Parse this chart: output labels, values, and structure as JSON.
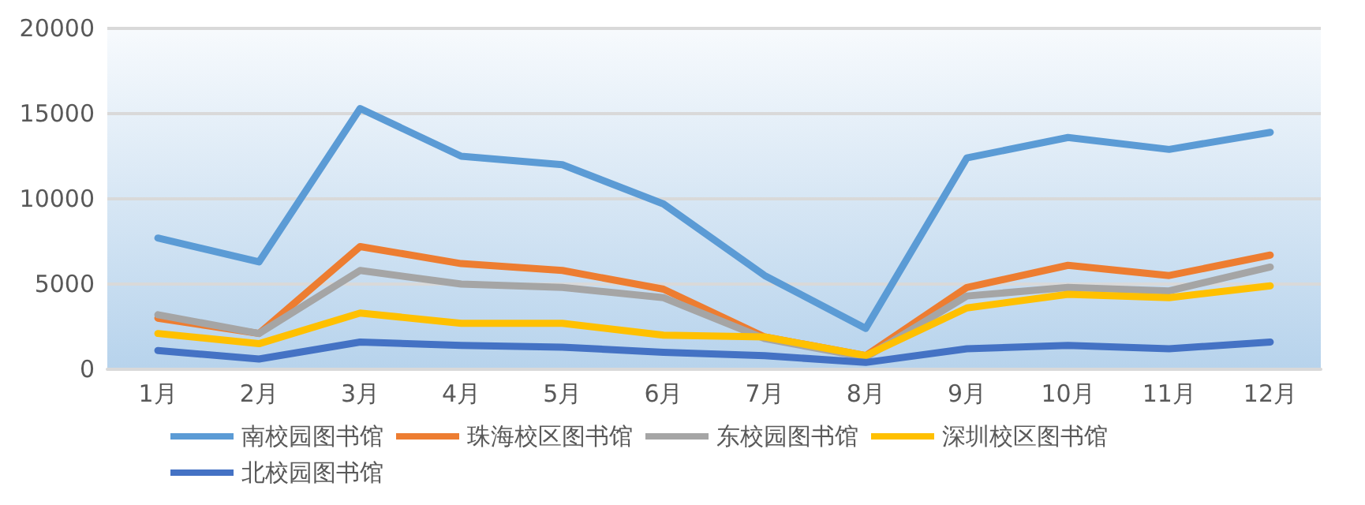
{
  "chart_data": {
    "type": "line",
    "categories": [
      "1月",
      "2月",
      "3月",
      "4月",
      "5月",
      "6月",
      "7月",
      "8月",
      "9月",
      "10月",
      "11月",
      "12月"
    ],
    "series": [
      {
        "name": "南校园图书馆",
        "color": "#5b9bd5",
        "values": [
          7700,
          6300,
          15300,
          12500,
          12000,
          9700,
          5500,
          2400,
          12400,
          13600,
          12900,
          13900
        ]
      },
      {
        "name": "珠海校区图书馆",
        "color": "#ed7d31",
        "values": [
          3000,
          2100,
          7200,
          6200,
          5800,
          4700,
          1900,
          800,
          4800,
          6100,
          5500,
          6700
        ]
      },
      {
        "name": "东校园图书馆",
        "color": "#a5a5a5",
        "values": [
          3200,
          2100,
          5800,
          5000,
          4800,
          4200,
          1800,
          700,
          4300,
          4800,
          4600,
          6000
        ]
      },
      {
        "name": "深圳校区图书馆",
        "color": "#ffc000",
        "values": [
          2100,
          1500,
          3300,
          2700,
          2700,
          2000,
          1900,
          800,
          3600,
          4400,
          4200,
          4900
        ]
      },
      {
        "name": "北校园图书馆",
        "color": "#4472c4",
        "values": [
          1100,
          600,
          1600,
          1400,
          1300,
          1000,
          800,
          400,
          1200,
          1400,
          1200,
          1600
        ]
      }
    ],
    "ylim": [
      0,
      20000
    ],
    "yticks": [
      0,
      5000,
      10000,
      15000,
      20000
    ],
    "grid": "y",
    "legend": "bottom",
    "marker": "none",
    "line_style": "solid"
  }
}
